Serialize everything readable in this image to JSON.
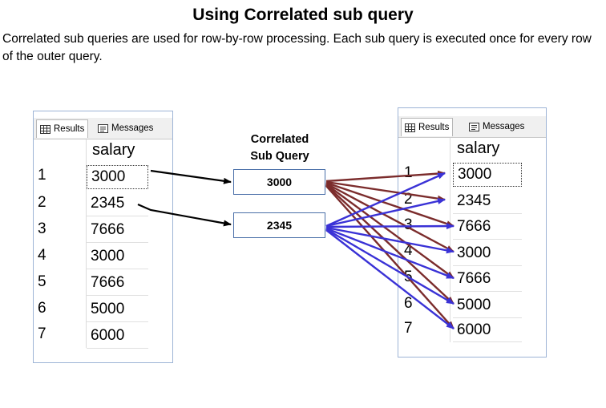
{
  "title": "Using Correlated sub query",
  "description": "Correlated sub queries are used for row-by-row processing. Each sub query is executed once for every row of the outer query.",
  "left_grid": {
    "tabs": [
      {
        "label": "Results",
        "icon": "grid-icon"
      },
      {
        "label": "Messages",
        "icon": "messages-icon"
      }
    ],
    "column": "salary",
    "rows": [
      {
        "num": "1",
        "value": "3000"
      },
      {
        "num": "2",
        "value": "2345"
      },
      {
        "num": "3",
        "value": "7666"
      },
      {
        "num": "4",
        "value": "3000"
      },
      {
        "num": "5",
        "value": "7666"
      },
      {
        "num": "6",
        "value": "5000"
      },
      {
        "num": "7",
        "value": "6000"
      }
    ]
  },
  "middle": {
    "label_line1": "Correlated",
    "label_line2": "Sub Query",
    "box1": "3000",
    "box2": "2345"
  },
  "right_grid": {
    "tabs": [
      {
        "label": "Results",
        "icon": "grid-icon"
      },
      {
        "label": "Messages",
        "icon": "messages-icon"
      }
    ],
    "column": "salary",
    "rows": [
      {
        "num": "1",
        "value": "3000"
      },
      {
        "num": "2",
        "value": "2345"
      },
      {
        "num": "3",
        "value": "7666"
      },
      {
        "num": "4",
        "value": "3000"
      },
      {
        "num": "5",
        "value": "7666"
      },
      {
        "num": "6",
        "value": "5000"
      },
      {
        "num": "7",
        "value": "6000"
      }
    ]
  },
  "colors": {
    "black_arrow": "#000000",
    "brown_arrow": "#7b2c2c",
    "blue_arrow": "#3a32d6",
    "grid_border": "#9db4d6"
  }
}
